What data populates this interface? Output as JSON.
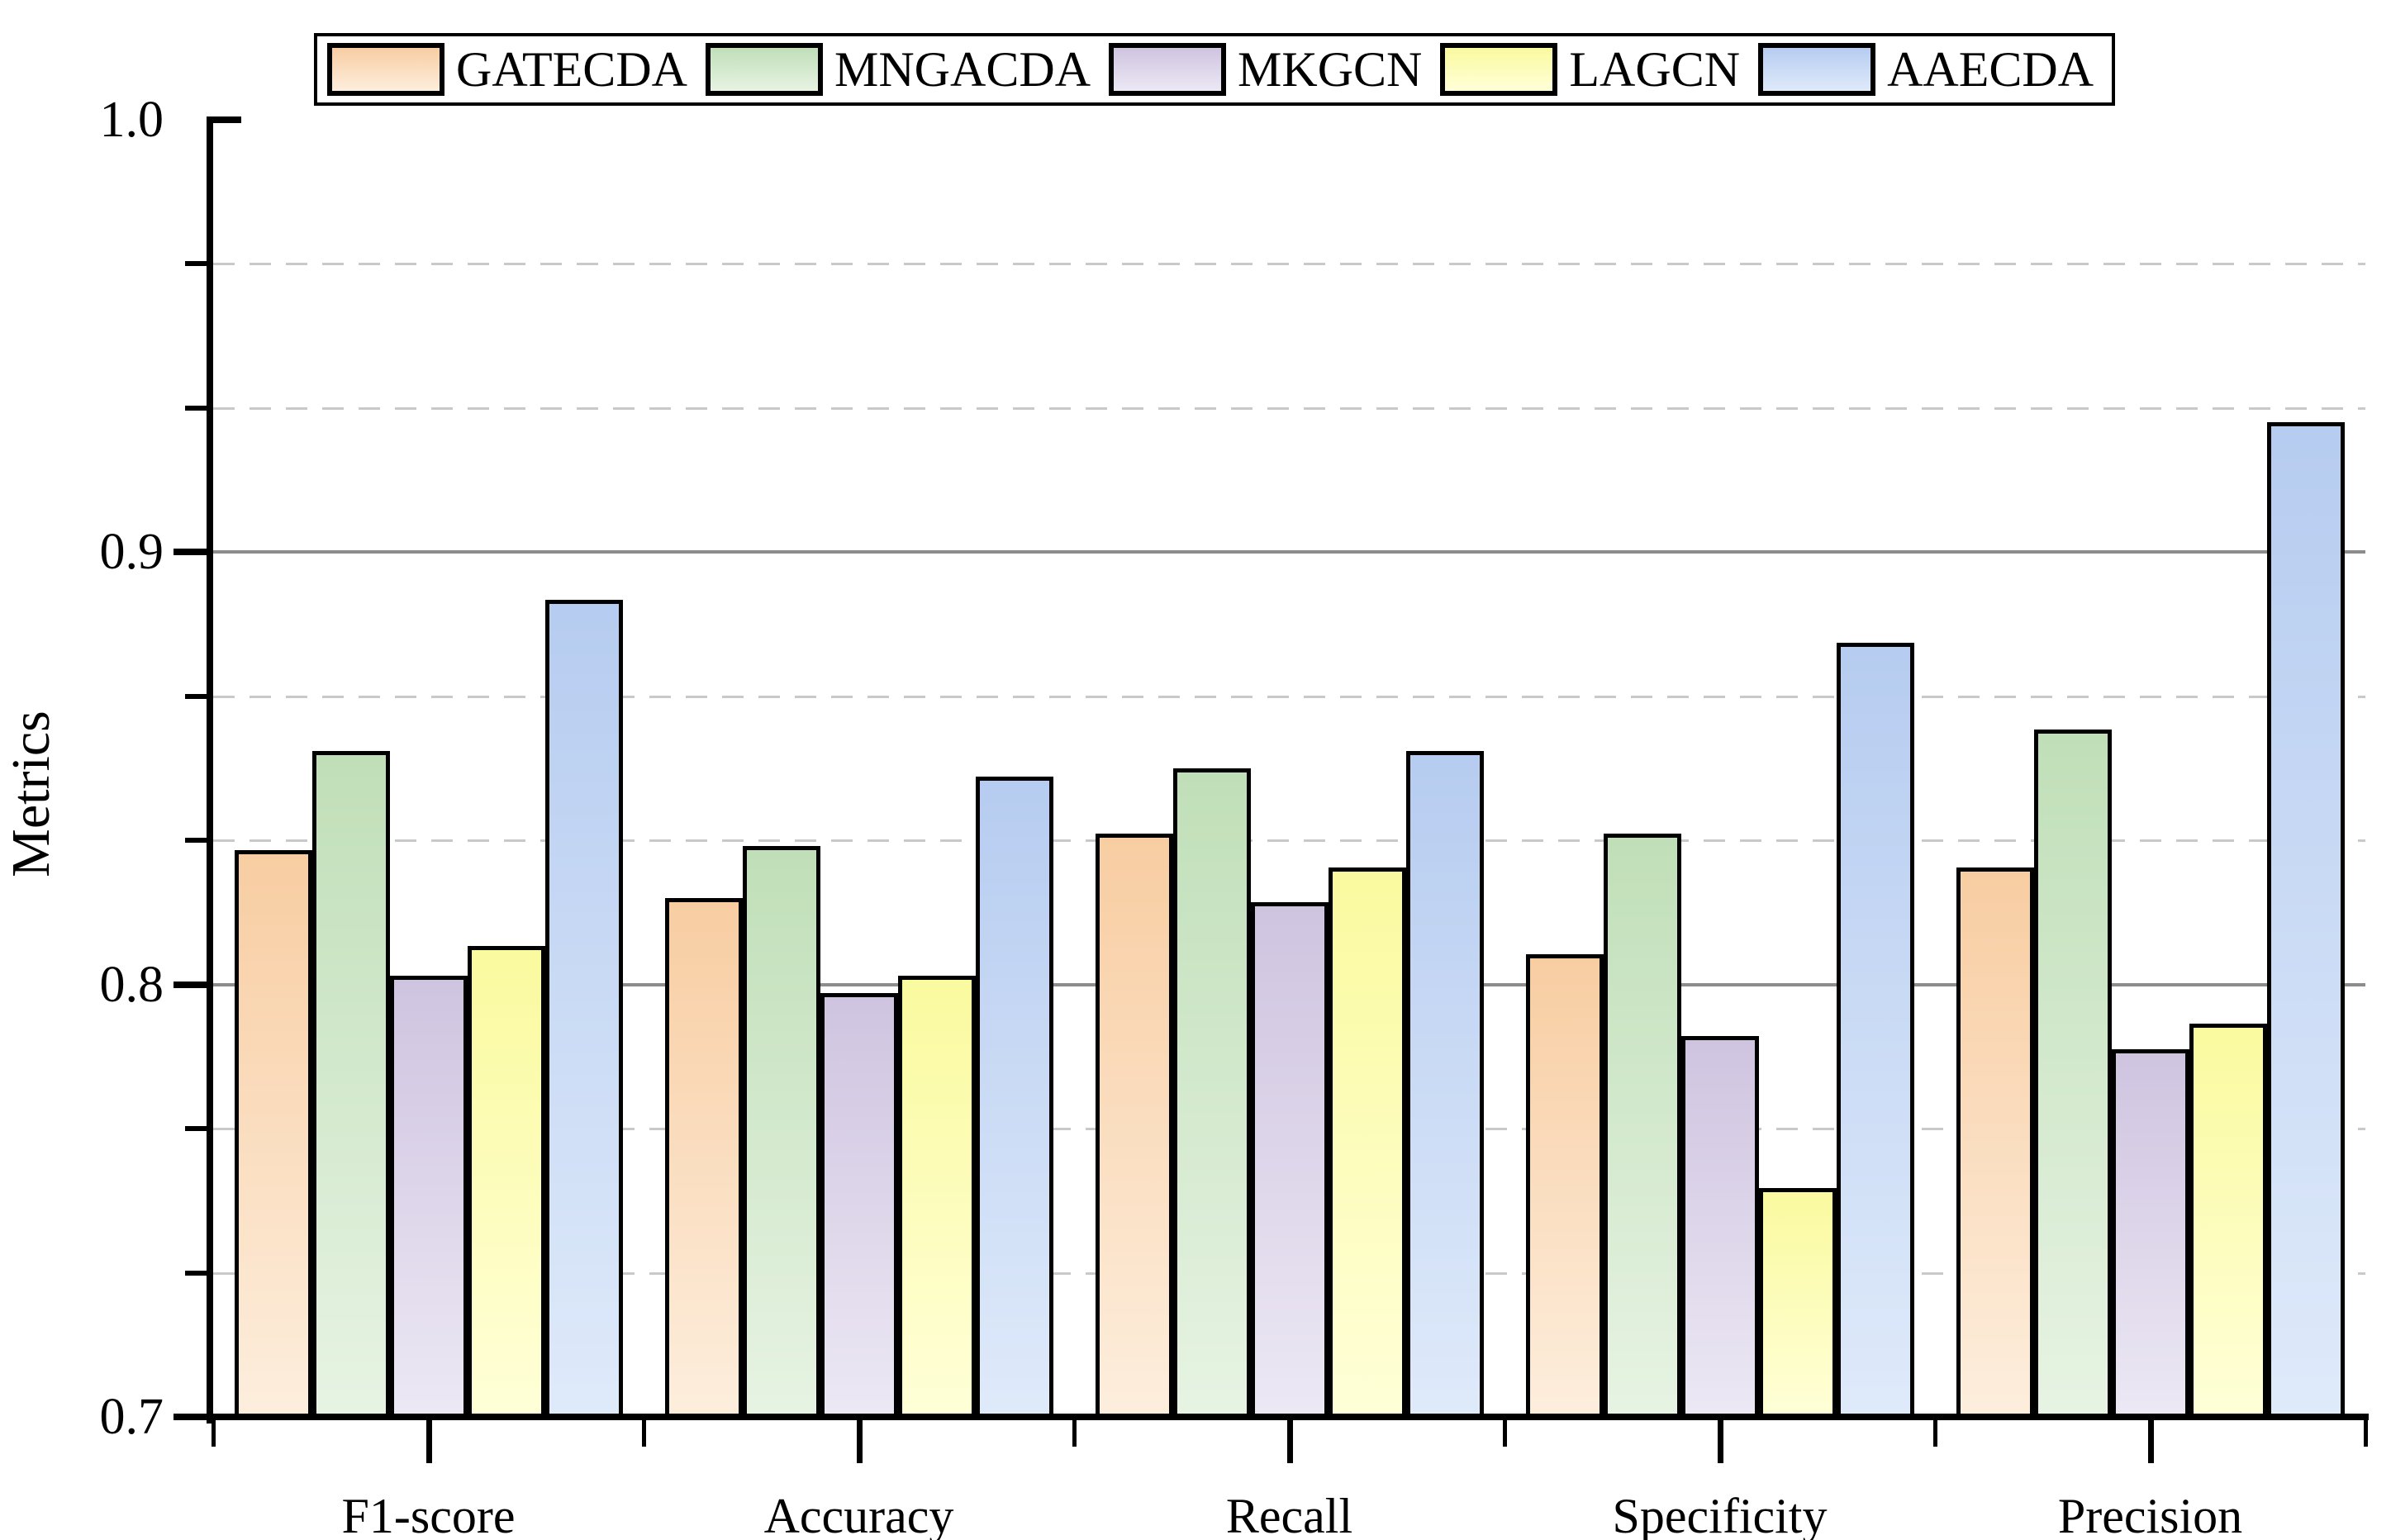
{
  "chart_data": {
    "type": "bar",
    "ylabel": "Metrics",
    "categories": [
      "F1-score",
      "Accuracy",
      "Recall",
      "Specificity",
      "Precision"
    ],
    "series": [
      {
        "name": "GATECDA",
        "color_top": "#f8cda2",
        "color_bottom": "#fdeedd",
        "values": [
          0.831,
          0.82,
          0.835,
          0.807,
          0.827
        ]
      },
      {
        "name": "MNGACDA",
        "color_top": "#c0dfb8",
        "color_bottom": "#e7f3e3",
        "values": [
          0.854,
          0.832,
          0.85,
          0.835,
          0.859
        ]
      },
      {
        "name": "MKGCN",
        "color_top": "#cfc4e0",
        "color_bottom": "#ece8f4",
        "values": [
          0.802,
          0.798,
          0.819,
          0.788,
          0.785
        ]
      },
      {
        "name": "LAGCN",
        "color_top": "#fafa9f",
        "color_bottom": "#ffffd8",
        "values": [
          0.809,
          0.802,
          0.827,
          0.753,
          0.791
        ]
      },
      {
        "name": "AAECDA",
        "color_top": "#b6ccf0",
        "color_bottom": "#dfeafa",
        "values": [
          0.889,
          0.848,
          0.854,
          0.879,
          0.93
        ]
      }
    ],
    "ylim": [
      0.7,
      1.0
    ],
    "y_major_ticks": [
      0.7,
      0.8,
      0.9,
      1.0
    ],
    "y_major_tick_labels": [
      "0.7",
      "0.8",
      "0.9",
      "1.0"
    ],
    "y_minor_ticks": [
      0.7333,
      0.7667,
      0.8333,
      0.8667,
      0.9333,
      0.9667
    ],
    "major_gridlines_at": [
      0.8,
      0.9
    ],
    "grid_style": {
      "major": "solid",
      "minor": "dashed"
    },
    "major_grid_color": "#8c8c8c",
    "minor_grid_color": "#c9c9c9",
    "axis_color": "#000000",
    "legend_position": "top",
    "xlabel": ""
  }
}
